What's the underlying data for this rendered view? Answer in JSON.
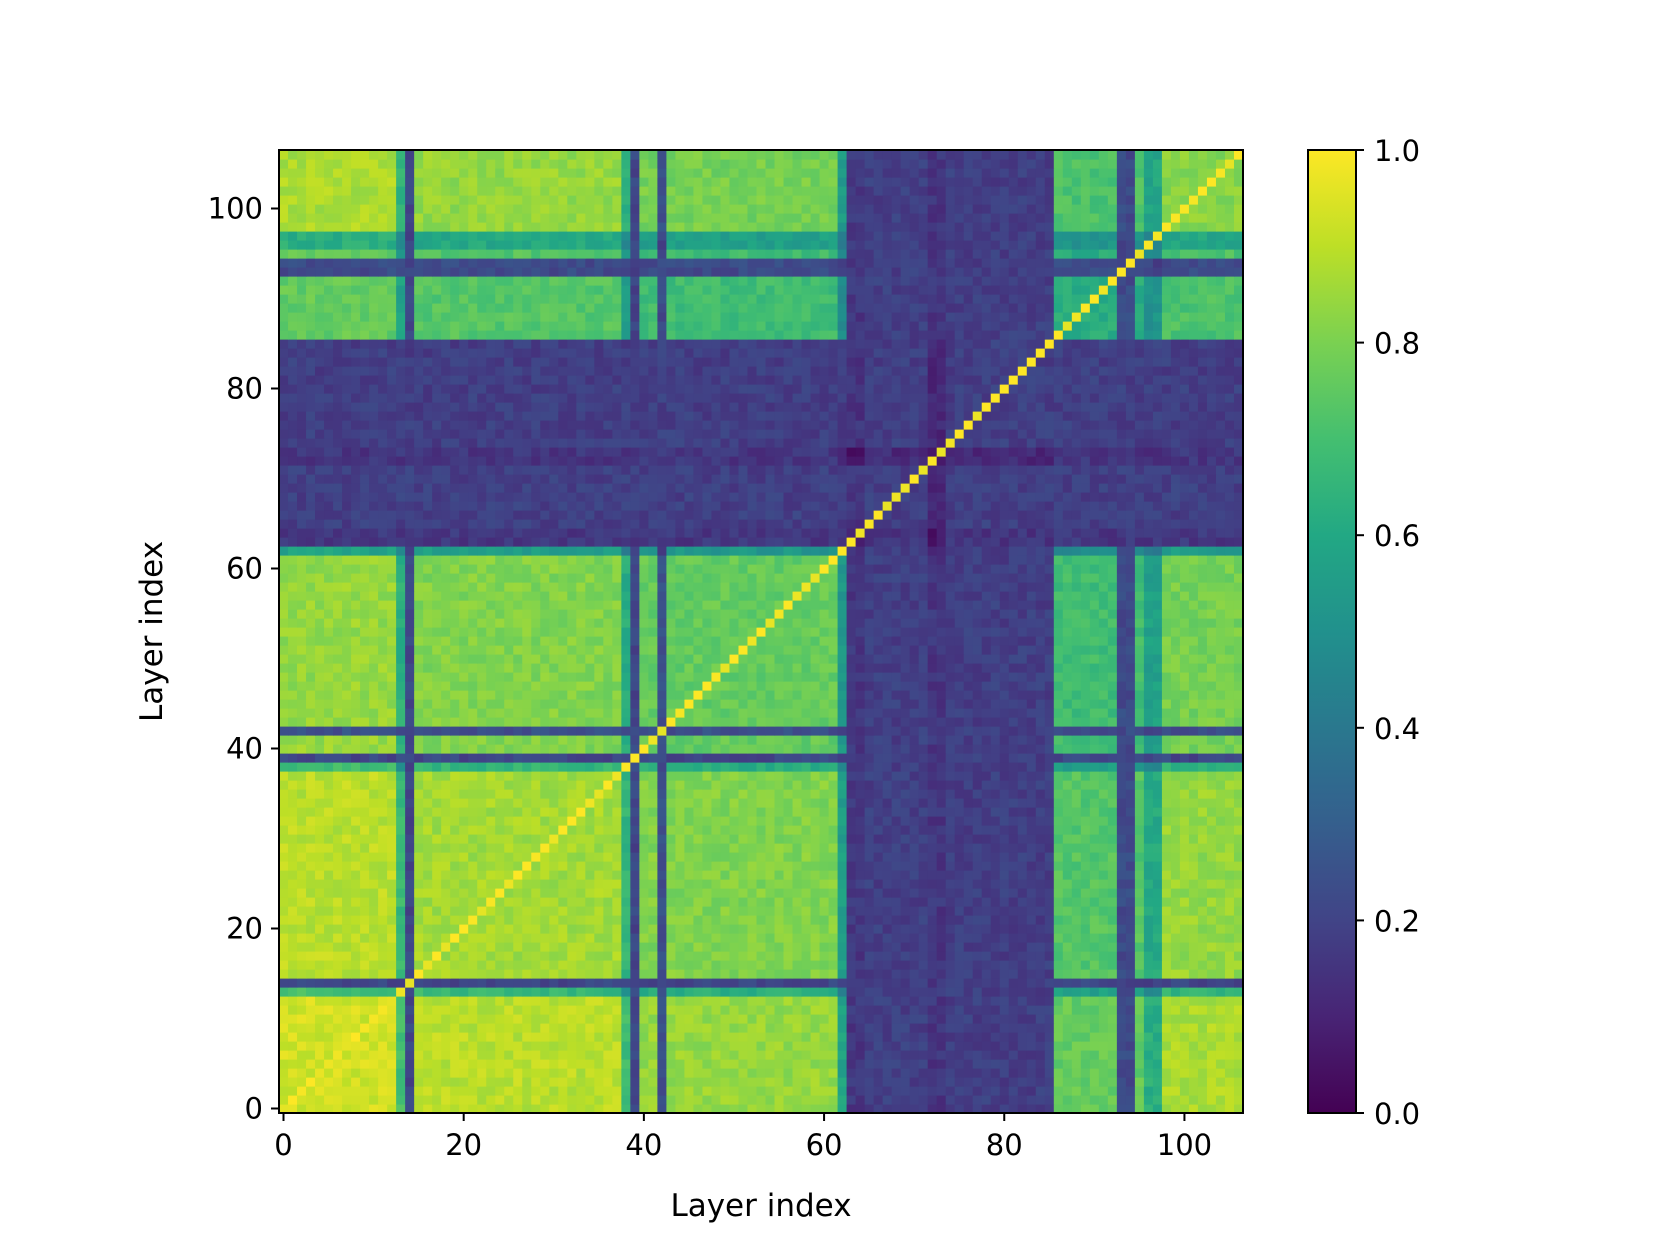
{
  "chart_data": {
    "type": "heatmap",
    "title": "",
    "xlabel": "Layer index",
    "ylabel": "Layer index",
    "n": 107,
    "xlim": [
      0,
      106
    ],
    "ylim": [
      0,
      106
    ],
    "x_ticks": [
      "0",
      "20",
      "40",
      "60",
      "80",
      "100"
    ],
    "x_tick_values": [
      0,
      20,
      40,
      60,
      80,
      100
    ],
    "y_ticks": [
      "0",
      "20",
      "40",
      "60",
      "80",
      "100"
    ],
    "y_tick_values": [
      0,
      20,
      40,
      60,
      80,
      100
    ],
    "colorbar": {
      "range": [
        0,
        1
      ],
      "ticks": [
        "0.0",
        "0.2",
        "0.4",
        "0.6",
        "0.8",
        "1.0"
      ],
      "tick_values": [
        0.0,
        0.2,
        0.4,
        0.6,
        0.8,
        1.0
      ],
      "colormap": "viridis"
    },
    "layer_segments": [
      {
        "from": 0,
        "to": 12,
        "level": 0.93
      },
      {
        "from": 13,
        "to": 14,
        "level": 0.52
      },
      {
        "from": 15,
        "to": 37,
        "level": 0.86
      },
      {
        "from": 38,
        "to": 39,
        "level": 0.5
      },
      {
        "from": 40,
        "to": 61,
        "level": 0.76
      },
      {
        "from": 62,
        "to": 62,
        "level": 0.36
      },
      {
        "from": 63,
        "to": 64,
        "level": 0.08
      },
      {
        "from": 65,
        "to": 71,
        "level": 0.3
      },
      {
        "from": 72,
        "to": 73,
        "level": 0.05
      },
      {
        "from": 74,
        "to": 85,
        "level": 0.28
      },
      {
        "from": 86,
        "to": 95,
        "level": 0.62
      },
      {
        "from": 96,
        "to": 97,
        "level": 0.42
      },
      {
        "from": 98,
        "to": 106,
        "level": 0.82
      }
    ],
    "dark_rows": [
      14,
      39,
      42,
      63,
      64,
      65,
      66,
      67,
      68,
      69,
      70,
      71,
      72,
      73,
      74,
      75,
      76,
      77,
      78,
      79,
      80,
      81,
      82,
      83,
      84,
      85,
      93,
      94
    ],
    "dark_row_level": 0.15
  }
}
